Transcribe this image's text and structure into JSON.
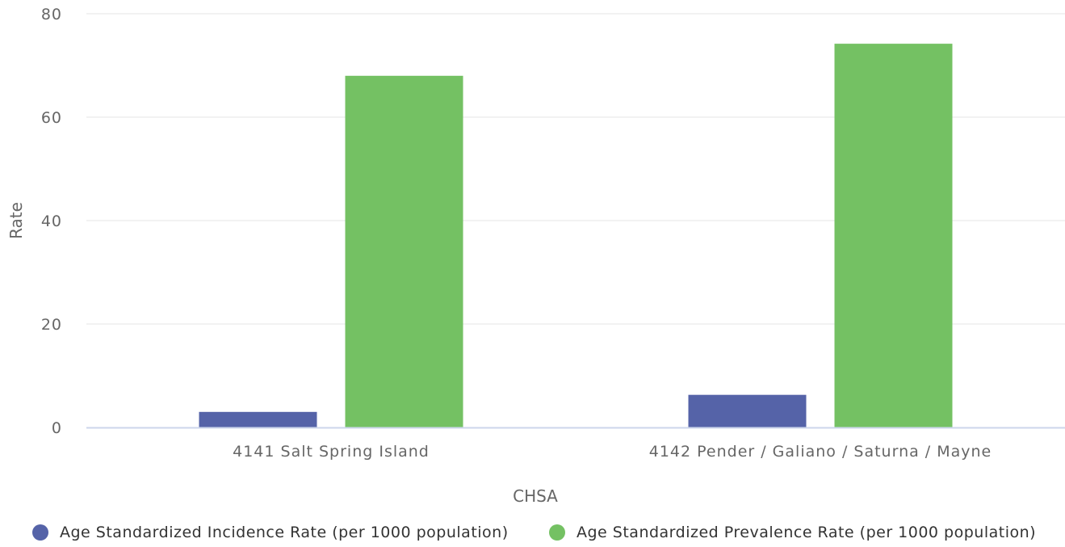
{
  "chart_data": {
    "type": "bar",
    "xlabel": "CHSA",
    "ylabel": "Rate",
    "ylim": [
      0,
      80
    ],
    "yticks": [
      0,
      20,
      40,
      60,
      80
    ],
    "categories": [
      "4141 Salt Spring Island",
      "4142 Pender / Galiano / Saturna / Mayne"
    ],
    "series": [
      {
        "name": "Age Standardized Incidence Rate (per 1000 population)",
        "color": "#5563a8",
        "values": [
          3.0,
          6.3
        ]
      },
      {
        "name": "Age Standardized Prevalence Rate (per 1000 population)",
        "color": "#74c163",
        "values": [
          68.0,
          74.2
        ]
      }
    ],
    "grid": true,
    "legend_position": "bottom"
  }
}
